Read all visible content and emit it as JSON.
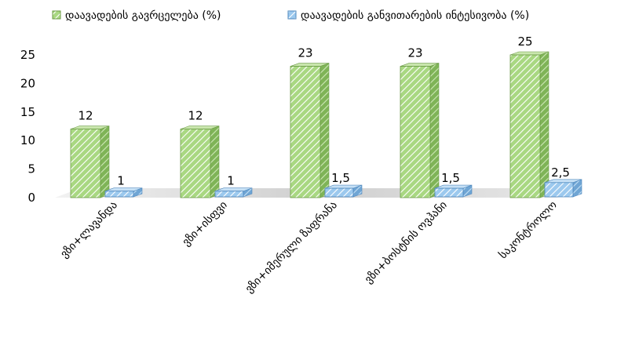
{
  "chart_data": {
    "type": "bar",
    "categories": [
      "ვზი+ლავანდა",
      "ვზი+ისფვი",
      "ვზი+იმერული ზაფრანა",
      "ვზი+ბოსტნის ოვჰანი",
      "საკონტროლო"
    ],
    "series": [
      {
        "name": "დაავადების გავრცელება (%)",
        "values": [
          12,
          12,
          23,
          23,
          25
        ],
        "color": "#9bcf6e"
      },
      {
        "name": "დაავადების  განვითარების ინტესივობა (%)",
        "values": [
          1,
          1,
          1.5,
          1.5,
          2.5
        ],
        "color": "#8fc1ea"
      }
    ],
    "data_labels": [
      [
        "12",
        "12",
        "23",
        "23",
        "25"
      ],
      [
        "1",
        "1",
        "1,5",
        "1,5",
        "2,5"
      ]
    ],
    "y_ticks": [
      "0",
      "5",
      "10",
      "15",
      "20",
      "25"
    ],
    "ylim": [
      0,
      25
    ],
    "legend_position": "top",
    "grid": false,
    "style": "3d-column"
  }
}
